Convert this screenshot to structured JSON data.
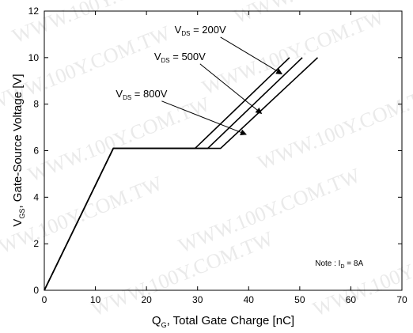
{
  "chart_data": {
    "type": "line",
    "title": "",
    "xlabel": {
      "main": "Q",
      "sub": "G",
      "rest": ", Total Gate Charge [nC]"
    },
    "ylabel": {
      "main": "V",
      "sub": "GS",
      "rest": ", Gate-Source Voltage [V]"
    },
    "xlim": [
      0,
      70
    ],
    "ylim": [
      0,
      12
    ],
    "xticks": [
      0,
      10,
      20,
      30,
      40,
      50,
      60,
      70
    ],
    "yticks": [
      0,
      2,
      4,
      6,
      8,
      10,
      12
    ],
    "grid": false,
    "legend": "none",
    "series": [
      {
        "label": {
          "main": "V",
          "sub": "DS",
          "rest": " = 200V"
        },
        "x": [
          0,
          13.5,
          29.5,
          48
        ],
        "y": [
          0,
          6.1,
          6.1,
          10
        ]
      },
      {
        "label": {
          "main": "V",
          "sub": "DS",
          "rest": " = 500V"
        },
        "x": [
          0,
          13.5,
          32,
          50.5
        ],
        "y": [
          0,
          6.1,
          6.1,
          10
        ]
      },
      {
        "label": {
          "main": "V",
          "sub": "DS",
          "rest": " = 800V"
        },
        "x": [
          0,
          13.5,
          34.5,
          53.5
        ],
        "y": [
          0,
          6.1,
          6.1,
          10
        ]
      }
    ],
    "annotations": [
      {
        "label_for": 0,
        "text_x": 25.5,
        "text_y": 11.05,
        "arrow_to_x": 46.5,
        "arrow_to_y": 9.3
      },
      {
        "label_for": 1,
        "text_x": 21.5,
        "text_y": 9.9,
        "arrow_to_x": 42.5,
        "arrow_to_y": 7.6
      },
      {
        "label_for": 2,
        "text_x": 14,
        "text_y": 8.3,
        "arrow_to_x": 39.5,
        "arrow_to_y": 6.7
      }
    ],
    "note": {
      "prefix": "Note : I",
      "sub": "D",
      "rest": " = 8A",
      "x": 53,
      "y": 1.05
    }
  },
  "watermark": "WWW.100Y.COM.TW"
}
